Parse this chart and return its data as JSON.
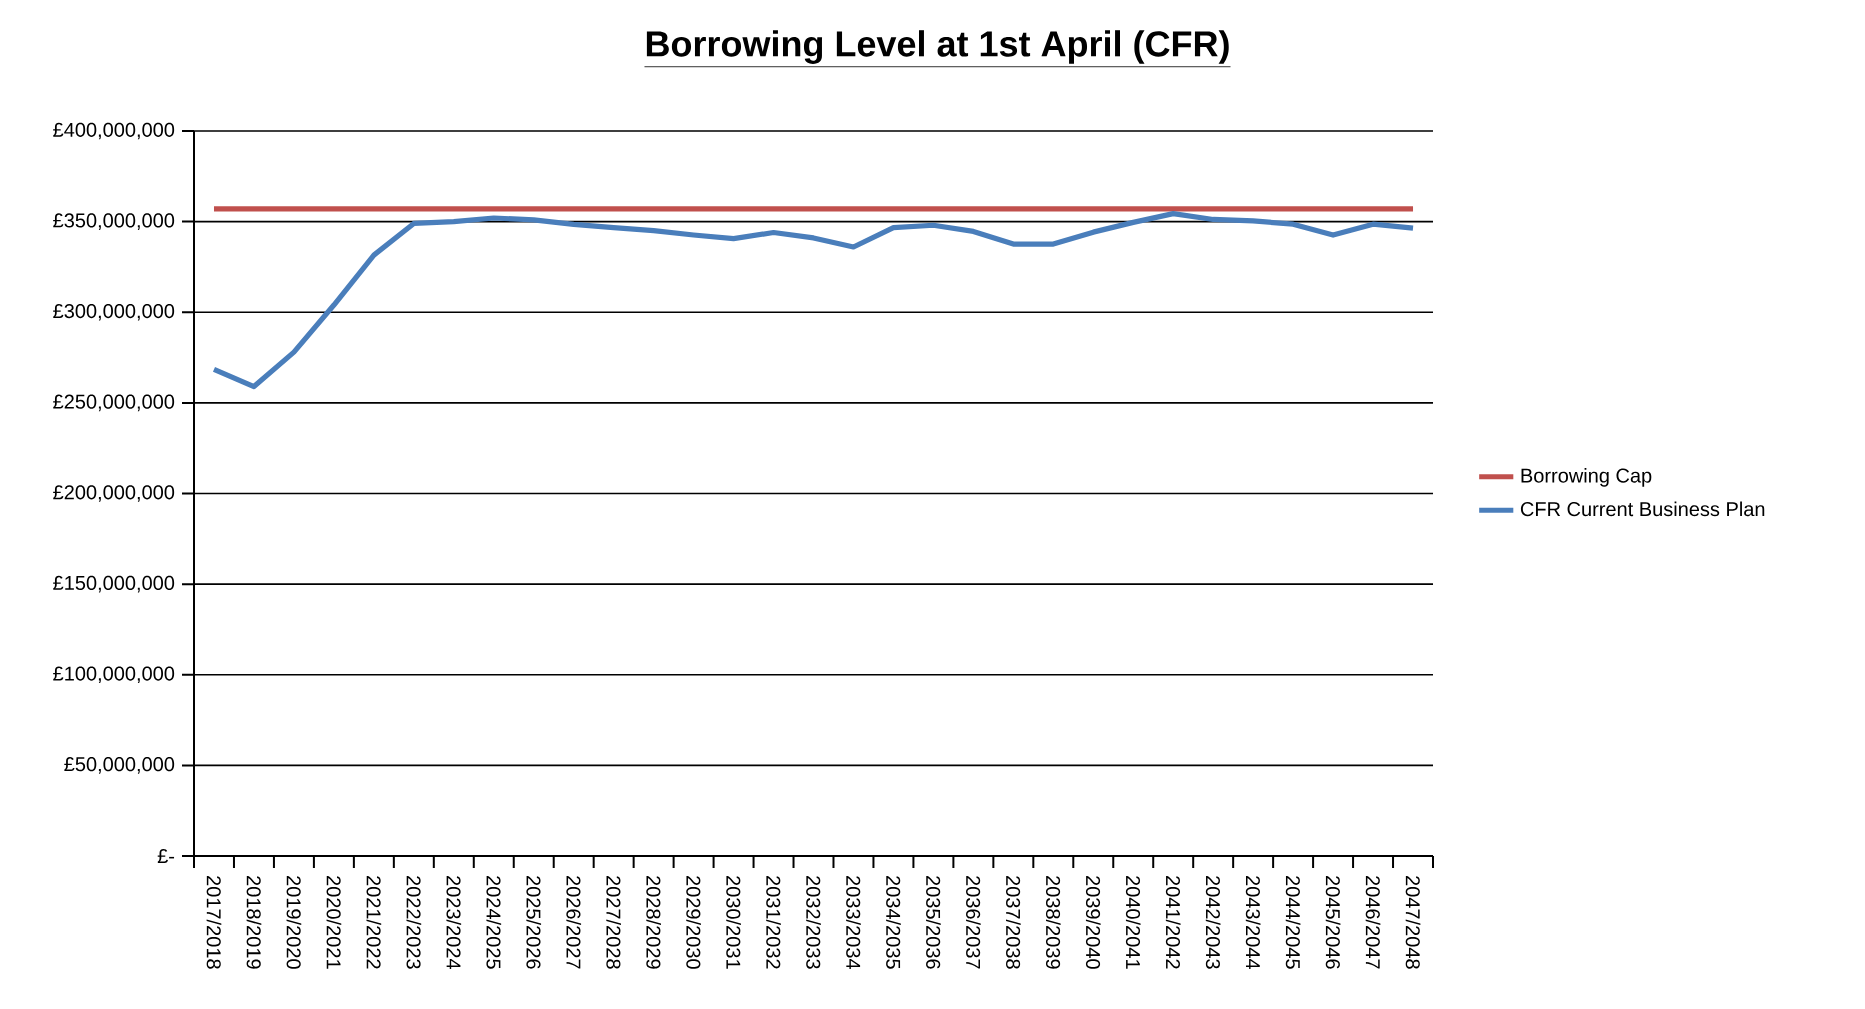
{
  "chart_data": {
    "type": "line",
    "title": "**Borrowing Level at 1st April (CFR)**",
    "categories": [
      "2017/2018",
      "2018/2019",
      "2019/2020",
      "2020/2021",
      "2021/2022",
      "2022/2023",
      "2023/2024",
      "2024/2025",
      "2025/2026",
      "2026/2027",
      "2027/2028",
      "2028/2029",
      "2029/2030",
      "2030/2031",
      "2031/2032",
      "2032/2033",
      "2033/2034",
      "2034/2035",
      "2035/2036",
      "2036/2037",
      "2037/2038",
      "2038/2039",
      "2039/2040",
      "2040/2041",
      "2041/2042",
      "2042/2043",
      "2043/2044",
      "2044/2045",
      "2045/2046",
      "2046/2047",
      "2047/2048"
    ],
    "series": [
      {
        "name": "Borrowing Cap",
        "color": "#c0504d",
        "values": [
          357000000,
          357000000,
          357000000,
          357000000,
          357000000,
          357000000,
          357000000,
          357000000,
          357000000,
          357000000,
          357000000,
          357000000,
          357000000,
          357000000,
          357000000,
          357000000,
          357000000,
          357000000,
          357000000,
          357000000,
          357000000,
          357000000,
          357000000,
          357000000,
          357000000,
          357000000,
          357000000,
          357000000,
          357000000,
          357000000,
          357000000
        ]
      },
      {
        "name": "CFR Current Business Plan",
        "color": "#4a7ebb",
        "values": [
          268500000,
          259000000,
          278000000,
          304000000,
          331500000,
          349000000,
          350000000,
          352000000,
          351000000,
          348500000,
          346700000,
          345000000,
          342600000,
          340600000,
          344000000,
          341000000,
          336000000,
          346700000,
          348000000,
          344600000,
          337600000,
          337600000,
          344200000,
          349600000,
          354400000,
          351200000,
          350400000,
          348600000,
          342600000,
          348600000,
          346400000
        ]
      }
    ],
    "ylim": [
      0,
      400000000
    ],
    "yticks": [
      {
        "value": 0,
        "label": "£-"
      },
      {
        "value": 50000000,
        "label": "£50,000,000"
      },
      {
        "value": 100000000,
        "label": "£100,000,000"
      },
      {
        "value": 150000000,
        "label": "£150,000,000"
      },
      {
        "value": 200000000,
        "label": "£200,000,000"
      },
      {
        "value": 250000000,
        "label": "£250,000,000"
      },
      {
        "value": 300000000,
        "label": "£300,000,000"
      },
      {
        "value": 350000000,
        "label": "£350,000,000"
      },
      {
        "value": 400000000,
        "label": "£400,000,000"
      }
    ],
    "grid": "y",
    "legend": "right",
    "marker": "none",
    "line_style": "solid"
  }
}
